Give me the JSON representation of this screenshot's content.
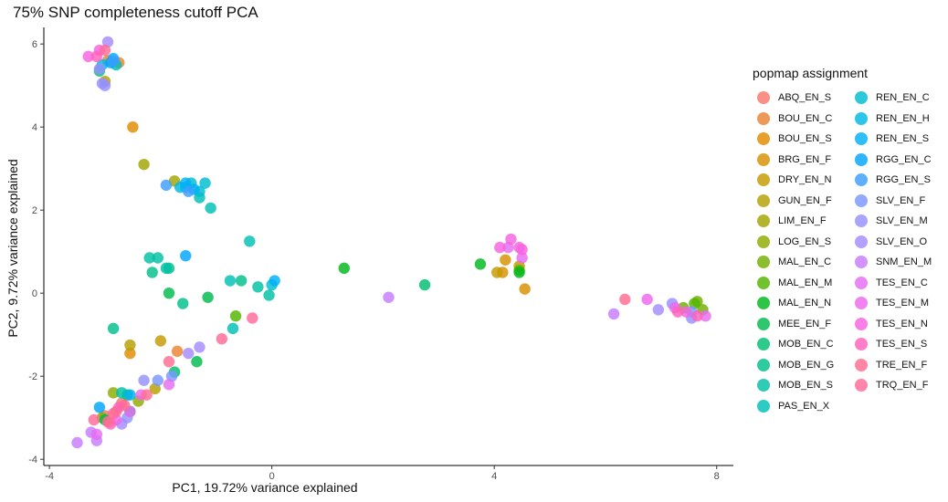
{
  "chart_data": {
    "type": "scatter",
    "title": "75% SNP completeness cutoff PCA",
    "xlabel": "PC1, 19.72% variance explained",
    "ylabel": "PC2, 9.72% variance explained",
    "xlim": [
      -4.1,
      8.3
    ],
    "ylim": [
      -4.15,
      6.4
    ],
    "xticks": [
      -4,
      0,
      4,
      8
    ],
    "yticks": [
      -4,
      -2,
      0,
      2,
      4,
      6
    ],
    "xtick_labels": [
      "-4",
      "0",
      "4",
      "8"
    ],
    "ytick_labels": [
      "-4",
      "-2",
      "0",
      "2",
      "4",
      "6"
    ],
    "grid": false,
    "legend_title": "popmap assignment",
    "legend_position": "right",
    "series": [
      {
        "name": "ABQ_EN_S",
        "color": "#F8766D",
        "points": [
          [
            -3.0,
            -2.95
          ],
          [
            -2.8,
            -2.85
          ],
          [
            -2.7,
            -2.65
          ]
        ]
      },
      {
        "name": "BOU_EN_C",
        "color": "#EA8331",
        "points": [
          [
            -1.7,
            -1.4
          ],
          [
            -2.75,
            5.55
          ],
          [
            -2.95,
            5.6
          ]
        ]
      },
      {
        "name": "BOU_EN_S",
        "color": "#E08B00",
        "points": [
          [
            -2.5,
            4.0
          ],
          [
            -2.55,
            -1.45
          ]
        ]
      },
      {
        "name": "BRG_EN_F",
        "color": "#D89000",
        "points": [
          [
            4.55,
            0.1
          ],
          [
            4.15,
            0.5
          ],
          [
            4.2,
            0.8
          ]
        ]
      },
      {
        "name": "DRY_EN_N",
        "color": "#C49A00",
        "points": [
          [
            -2.0,
            -1.15
          ],
          [
            4.05,
            0.5
          ],
          [
            4.45,
            0.65
          ]
        ]
      },
      {
        "name": "GUN_EN_F",
        "color": "#B4A000",
        "points": [
          [
            -2.1,
            -2.3
          ],
          [
            -2.55,
            -1.25
          ],
          [
            -3.0,
            5.1
          ]
        ]
      },
      {
        "name": "LIM_EN_F",
        "color": "#A3A500",
        "points": [
          [
            -2.3,
            3.1
          ],
          [
            -1.75,
            2.7
          ]
        ]
      },
      {
        "name": "LOG_EN_S",
        "color": "#8EAB00",
        "points": [
          [
            -2.85,
            -2.4
          ],
          [
            -2.4,
            -2.6
          ],
          [
            -3.05,
            -3.0
          ]
        ]
      },
      {
        "name": "MAL_EN_C",
        "color": "#72B000",
        "points": [
          [
            7.75,
            -0.4
          ],
          [
            7.65,
            -0.2
          ],
          [
            7.4,
            -0.35
          ]
        ]
      },
      {
        "name": "MAL_EN_M",
        "color": "#53B400",
        "points": [
          [
            -0.65,
            -0.55
          ],
          [
            4.45,
            0.55
          ],
          [
            7.6,
            -0.25
          ]
        ]
      },
      {
        "name": "MAL_EN_N",
        "color": "#00B81F",
        "points": [
          [
            1.3,
            0.6
          ],
          [
            3.75,
            0.7
          ],
          [
            4.45,
            0.5
          ]
        ]
      },
      {
        "name": "MEE_EN_F",
        "color": "#00BB4E",
        "points": [
          [
            -1.15,
            -0.1
          ],
          [
            -1.85,
            0.0
          ],
          [
            -1.35,
            -1.65
          ],
          [
            -2.55,
            -2.85
          ],
          [
            -3.0,
            -3.05
          ]
        ]
      },
      {
        "name": "MOB_EN_C",
        "color": "#00BE70",
        "points": [
          [
            2.75,
            0.2
          ],
          [
            -1.75,
            -1.9
          ],
          [
            -2.6,
            -2.45
          ],
          [
            -3.1,
            5.35
          ]
        ]
      },
      {
        "name": "MOB_EN_G",
        "color": "#00BF8B",
        "points": [
          [
            -1.6,
            -0.25
          ],
          [
            -1.85,
            0.6
          ],
          [
            -2.15,
            0.5
          ],
          [
            -0.55,
            0.3
          ],
          [
            -2.85,
            -0.85
          ]
        ]
      },
      {
        "name": "MOB_EN_S",
        "color": "#00C1A3",
        "points": [
          [
            -1.9,
            0.6
          ],
          [
            -2.05,
            0.85
          ],
          [
            -2.2,
            0.85
          ],
          [
            -0.25,
            0.15
          ],
          [
            -0.05,
            -0.05
          ],
          [
            -2.7,
            -2.4
          ]
        ]
      },
      {
        "name": "PAS_EN_X",
        "color": "#00C0B8",
        "points": [
          [
            -0.4,
            1.25
          ],
          [
            -0.75,
            0.3
          ],
          [
            -0.7,
            -0.85
          ],
          [
            -1.1,
            2.05
          ],
          [
            -1.3,
            2.3
          ],
          [
            -2.8,
            5.5
          ]
        ]
      },
      {
        "name": "REN_EN_C",
        "color": "#00BDD0",
        "points": [
          [
            -1.3,
            2.45
          ],
          [
            -1.2,
            2.65
          ],
          [
            -1.45,
            2.65
          ],
          [
            0.0,
            0.2
          ]
        ]
      },
      {
        "name": "REN_EN_H",
        "color": "#00B8E5",
        "points": [
          [
            -1.55,
            2.55
          ],
          [
            -1.65,
            2.55
          ],
          [
            -3.05,
            5.5
          ]
        ]
      },
      {
        "name": "REN_EN_S",
        "color": "#00B0F6",
        "points": [
          [
            -1.55,
            2.65
          ],
          [
            -1.4,
            2.5
          ],
          [
            -2.55,
            -2.45
          ],
          [
            0.05,
            0.3
          ],
          [
            -2.85,
            5.65
          ]
        ]
      },
      {
        "name": "RGG_EN_C",
        "color": "#00A5FF",
        "points": [
          [
            -1.55,
            0.9
          ],
          [
            -3.1,
            -2.75
          ],
          [
            -2.9,
            5.55
          ]
        ]
      },
      {
        "name": "RGG_EN_S",
        "color": "#3D9DFF",
        "points": [
          [
            -1.9,
            2.6
          ],
          [
            -1.5,
            2.45
          ],
          [
            -2.85,
            5.6
          ]
        ]
      },
      {
        "name": "SLV_EN_F",
        "color": "#7997FF",
        "points": [
          [
            -1.8,
            -2.0
          ],
          [
            -2.05,
            -2.1
          ],
          [
            7.55,
            -0.45
          ]
        ]
      },
      {
        "name": "SLV_EN_M",
        "color": "#9590FF",
        "points": [
          [
            -3.0,
            5.0
          ],
          [
            -3.05,
            5.05
          ],
          [
            -3.1,
            5.4
          ],
          [
            7.2,
            -0.25
          ],
          [
            7.55,
            -0.6
          ],
          [
            -2.3,
            -2.1
          ],
          [
            -2.6,
            -3.0
          ]
        ]
      },
      {
        "name": "SLV_EN_O",
        "color": "#A58AFF",
        "points": [
          [
            -2.95,
            6.05
          ],
          [
            6.95,
            -0.4
          ],
          [
            -1.3,
            -1.3
          ],
          [
            -1.5,
            -1.45
          ],
          [
            -2.7,
            -3.15
          ]
        ]
      },
      {
        "name": "SNM_EN_M",
        "color": "#C77CFF",
        "points": [
          [
            2.1,
            -0.1
          ],
          [
            6.15,
            -0.5
          ],
          [
            -3.5,
            -3.6
          ],
          [
            -3.15,
            -3.55
          ],
          [
            -3.25,
            -3.35
          ]
        ]
      },
      {
        "name": "TES_EN_C",
        "color": "#E76BF3",
        "points": [
          [
            4.25,
            1.1
          ],
          [
            4.5,
            0.85
          ],
          [
            7.8,
            -0.55
          ],
          [
            -1.85,
            -2.2
          ],
          [
            -2.55,
            -2.85
          ],
          [
            -3.15,
            -3.4
          ]
        ]
      },
      {
        "name": "TES_EN_M",
        "color": "#ED68ED",
        "points": [
          [
            6.75,
            -0.15
          ],
          [
            7.25,
            -0.35
          ],
          [
            -2.35,
            -2.45
          ],
          [
            -2.8,
            -3.05
          ]
        ]
      },
      {
        "name": "TES_EN_N",
        "color": "#F763E0",
        "points": [
          [
            4.3,
            1.3
          ],
          [
            4.45,
            1.1
          ],
          [
            4.1,
            1.1
          ],
          [
            4.5,
            1.05
          ],
          [
            7.45,
            -0.45
          ],
          [
            -3.1,
            5.85
          ],
          [
            -3.3,
            5.7
          ]
        ]
      },
      {
        "name": "TES_EN_S",
        "color": "#FF62BC",
        "points": [
          [
            7.3,
            -0.45
          ],
          [
            7.65,
            -0.55
          ],
          [
            -3.15,
            5.7
          ],
          [
            -2.75,
            -2.75
          ],
          [
            -2.9,
            -3.15
          ]
        ]
      },
      {
        "name": "TRE_EN_F",
        "color": "#FF6C91",
        "points": [
          [
            6.35,
            -0.15
          ],
          [
            -1.85,
            -1.65
          ],
          [
            -2.25,
            -2.45
          ],
          [
            -2.95,
            -3.1
          ]
        ]
      },
      {
        "name": "TRQ_EN_F",
        "color": "#FF6A98",
        "points": [
          [
            -0.35,
            -0.6
          ],
          [
            -0.9,
            -1.1
          ],
          [
            -2.65,
            -2.7
          ],
          [
            -3.2,
            -3.05
          ],
          [
            -2.85,
            -2.9
          ],
          [
            -3.0,
            5.85
          ]
        ]
      }
    ]
  }
}
